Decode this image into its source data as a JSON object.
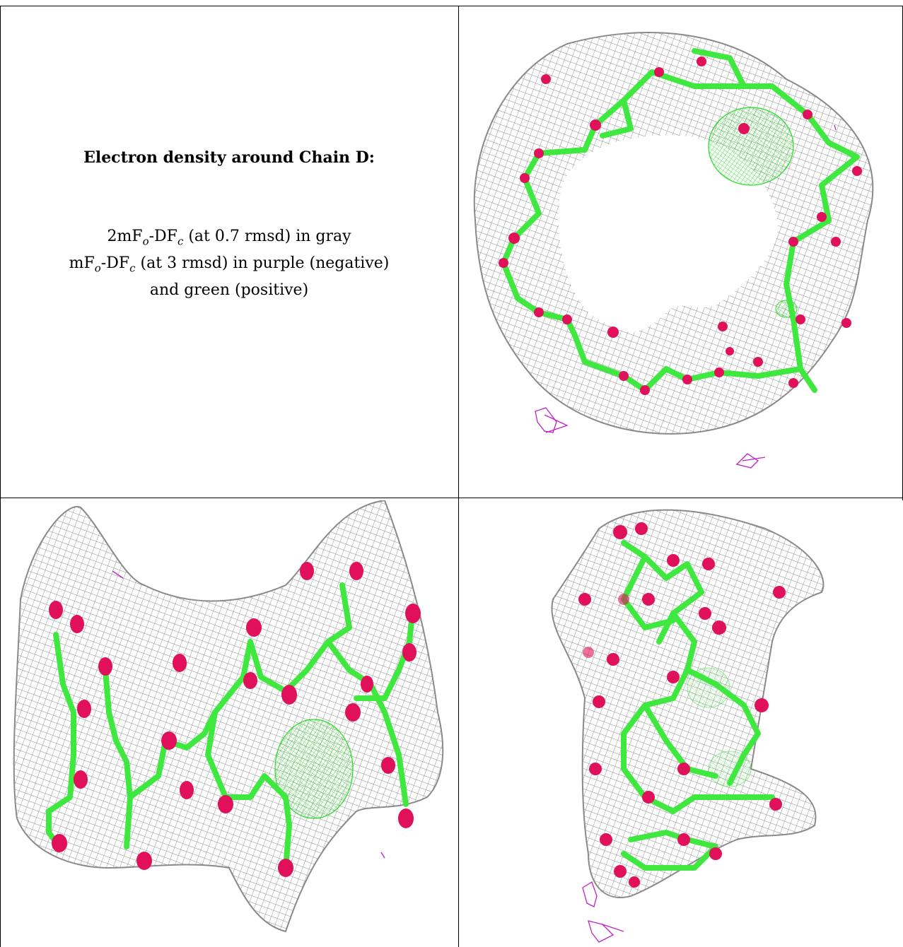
{
  "caption": {
    "title": "Electron density around Chain D:",
    "line1": {
      "prefix": "2mF",
      "sub1": "o",
      "middle": "-DF",
      "sub2": "c",
      "suffix": " (at 0.7 rmsd) in gray"
    },
    "line2": {
      "prefix": "mF",
      "sub1": "o",
      "middle": "-DF",
      "sub2": "c",
      "suffix": " (at 3 rmsd) in purple (negative)"
    },
    "line3": "and green (positive)"
  },
  "colors": {
    "mesh_gray": "#8a8a8a",
    "bond_green": "#3ee83e",
    "oxygen_pink": "#e0105a",
    "negative_purple": "#c020c8",
    "positive_green": "#22dd22"
  }
}
